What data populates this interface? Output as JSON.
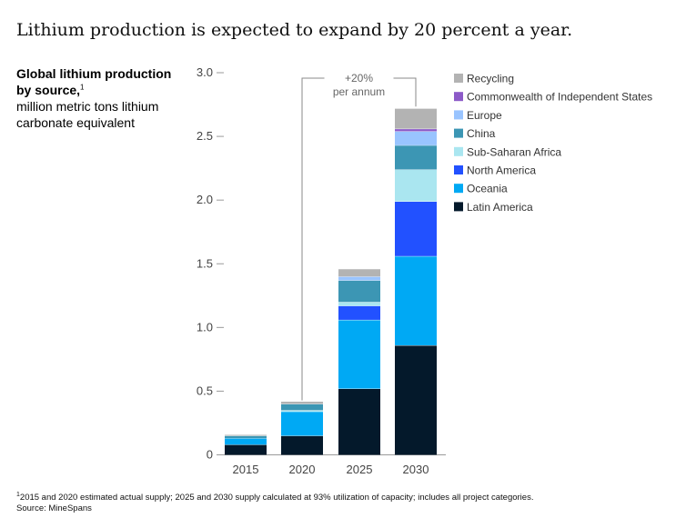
{
  "title": "Lithium production is expected to expand by 20 percent a year.",
  "subtitle": {
    "bold": "Global lithium production by source,",
    "marker": "1",
    "text": "million metric tons lithium carbonate equivalent"
  },
  "footnote": {
    "marker": "1",
    "text": "2015 and 2020 estimated actual supply; 2025 and 2030 supply calculated at 93% utilization of capacity; includes all project categories.",
    "source": "Source: MineSpans"
  },
  "chart_data": {
    "type": "bar",
    "stacked": true,
    "categories": [
      "2015",
      "2020",
      "2025",
      "2030"
    ],
    "ylim": [
      0,
      3.0
    ],
    "yticks": [
      "0",
      "0.5",
      "1.0",
      "1.5",
      "2.0",
      "2.5",
      "3.0"
    ],
    "ytick_values": [
      0,
      0.5,
      1.0,
      1.5,
      2.0,
      2.5,
      3.0
    ],
    "series": [
      {
        "name": "Latin America",
        "color": "#04192b",
        "values": [
          0.08,
          0.15,
          0.52,
          0.86
        ]
      },
      {
        "name": "Oceania",
        "color": "#00a9f4",
        "values": [
          0.05,
          0.19,
          0.54,
          0.7
        ]
      },
      {
        "name": "North America",
        "color": "#2251ff",
        "values": [
          0.0,
          0.0,
          0.11,
          0.43
        ]
      },
      {
        "name": "Sub-Saharan Africa",
        "color": "#aae6f0",
        "values": [
          0.0,
          0.01,
          0.03,
          0.25
        ]
      },
      {
        "name": "China",
        "color": "#3c96b4",
        "values": [
          0.02,
          0.05,
          0.17,
          0.19
        ]
      },
      {
        "name": "Europe",
        "color": "#99c4ff",
        "values": [
          0.0,
          0.0,
          0.03,
          0.11
        ]
      },
      {
        "name": "Commonwealth of Independent States",
        "color": "#8c5ac8",
        "values": [
          0.0,
          0.0,
          0.0,
          0.02
        ]
      },
      {
        "name": "Recycling",
        "color": "#b3b3b3",
        "values": [
          0.01,
          0.02,
          0.06,
          0.16
        ]
      }
    ],
    "legend_order": [
      "Recycling",
      "Commonwealth of Independent States",
      "Europe",
      "China",
      "Sub-Saharan Africa",
      "North America",
      "Oceania",
      "Latin America"
    ],
    "annotation": {
      "line1": "+20%",
      "line2": "per annum",
      "from": "2020",
      "to": "2030"
    },
    "xlabel": "",
    "ylabel": "million metric tons lithium carbonate equivalent"
  }
}
